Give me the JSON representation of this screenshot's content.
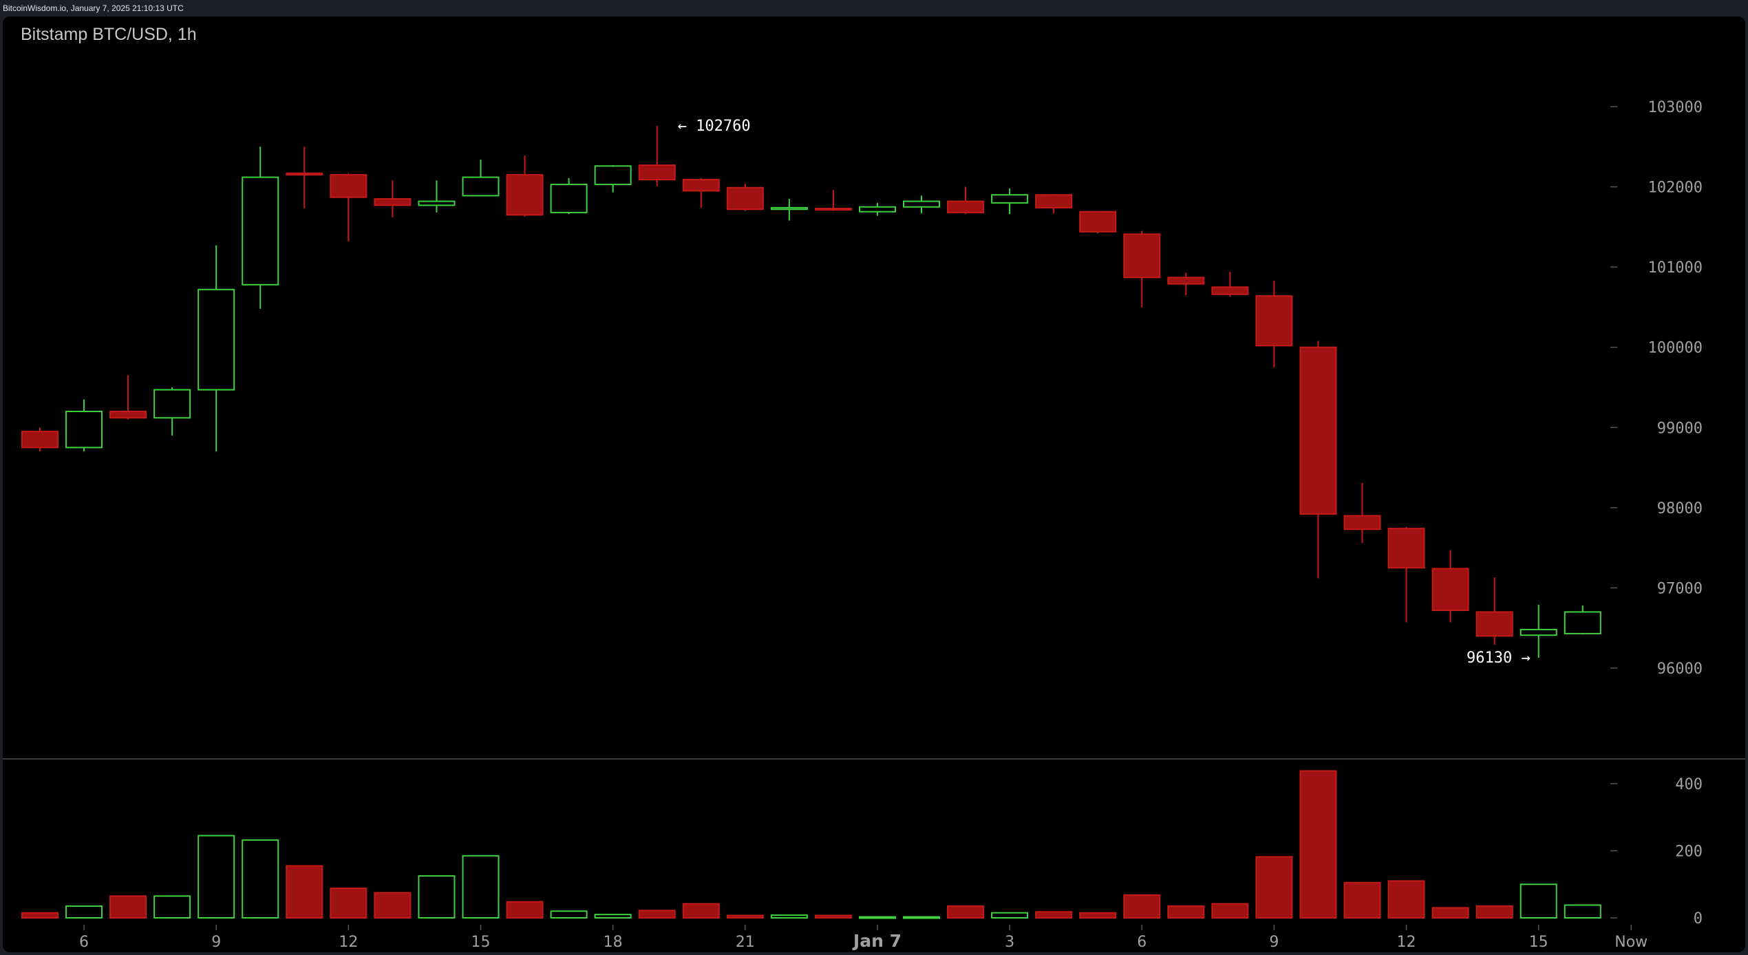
{
  "header": {
    "timestamp": "BitcoinWisdom.io, January 7, 2025 21:10:13 UTC",
    "title": "Bitstamp BTC/USD, 1h"
  },
  "colors": {
    "up": "#3fd13f",
    "down": "#a01212",
    "down_edge": "#c41a1a",
    "axis_text": "#a0a0a0",
    "background": "#000000"
  },
  "chart_data": [
    {
      "type": "candlestick",
      "title": "Bitstamp BTC/USD, 1h",
      "ylim": [
        95000,
        103800
      ],
      "y_ticks": [
        96000,
        97000,
        98000,
        99000,
        100000,
        101000,
        102000,
        103000
      ],
      "x_ticks": [
        {
          "label": "6",
          "index": 1
        },
        {
          "label": "9",
          "index": 4
        },
        {
          "label": "12",
          "index": 7
        },
        {
          "label": "15",
          "index": 10
        },
        {
          "label": "18",
          "index": 13
        },
        {
          "label": "21",
          "index": 16
        },
        {
          "label": "Jan 7",
          "index": 19,
          "bold": true
        },
        {
          "label": "3",
          "index": 22
        },
        {
          "label": "6",
          "index": 25
        },
        {
          "label": "9",
          "index": 28
        },
        {
          "label": "12",
          "index": 31
        },
        {
          "label": "15",
          "index": 34
        },
        {
          "label": "Now",
          "index": 36.1
        }
      ],
      "candles": [
        {
          "o": 98950,
          "h": 99000,
          "l": 98700,
          "c": 98750
        },
        {
          "o": 98750,
          "h": 99350,
          "l": 98700,
          "c": 99200
        },
        {
          "o": 99200,
          "h": 99650,
          "l": 99100,
          "c": 99120
        },
        {
          "o": 99120,
          "h": 99500,
          "l": 98900,
          "c": 99470
        },
        {
          "o": 99470,
          "h": 101270,
          "l": 98700,
          "c": 100720
        },
        {
          "o": 100780,
          "h": 102500,
          "l": 100480,
          "c": 102120
        },
        {
          "o": 102170,
          "h": 102500,
          "l": 101730,
          "c": 102150
        },
        {
          "o": 102150,
          "h": 102170,
          "l": 101320,
          "c": 101870
        },
        {
          "o": 101850,
          "h": 102080,
          "l": 101620,
          "c": 101770
        },
        {
          "o": 101770,
          "h": 102080,
          "l": 101680,
          "c": 101820
        },
        {
          "o": 101890,
          "h": 102340,
          "l": 101890,
          "c": 102120
        },
        {
          "o": 102150,
          "h": 102390,
          "l": 101630,
          "c": 101650
        },
        {
          "o": 101680,
          "h": 102110,
          "l": 101660,
          "c": 102030
        },
        {
          "o": 102030,
          "h": 102270,
          "l": 101930,
          "c": 102260
        },
        {
          "o": 102270,
          "h": 102760,
          "l": 102010,
          "c": 102090
        },
        {
          "o": 102090,
          "h": 102110,
          "l": 101740,
          "c": 101950
        },
        {
          "o": 101990,
          "h": 102040,
          "l": 101700,
          "c": 101720
        },
        {
          "o": 101720,
          "h": 101850,
          "l": 101580,
          "c": 101740
        },
        {
          "o": 101730,
          "h": 101960,
          "l": 101700,
          "c": 101720
        },
        {
          "o": 101690,
          "h": 101800,
          "l": 101640,
          "c": 101750
        },
        {
          "o": 101750,
          "h": 101890,
          "l": 101670,
          "c": 101820
        },
        {
          "o": 101820,
          "h": 102000,
          "l": 101660,
          "c": 101680
        },
        {
          "o": 101800,
          "h": 101980,
          "l": 101660,
          "c": 101900
        },
        {
          "o": 101900,
          "h": 101910,
          "l": 101670,
          "c": 101740
        },
        {
          "o": 101690,
          "h": 101700,
          "l": 101420,
          "c": 101440
        },
        {
          "o": 101410,
          "h": 101450,
          "l": 100500,
          "c": 100870
        },
        {
          "o": 100870,
          "h": 100930,
          "l": 100650,
          "c": 100790
        },
        {
          "o": 100750,
          "h": 100940,
          "l": 100630,
          "c": 100660
        },
        {
          "o": 100640,
          "h": 100830,
          "l": 99750,
          "c": 100020
        },
        {
          "o": 100000,
          "h": 100080,
          "l": 97120,
          "c": 97920
        },
        {
          "o": 97900,
          "h": 98310,
          "l": 97560,
          "c": 97730
        },
        {
          "o": 97740,
          "h": 97760,
          "l": 96570,
          "c": 97250
        },
        {
          "o": 97240,
          "h": 97470,
          "l": 96570,
          "c": 96720
        },
        {
          "o": 96700,
          "h": 97130,
          "l": 96290,
          "c": 96400
        },
        {
          "o": 96410,
          "h": 96790,
          "l": 96130,
          "c": 96480
        },
        {
          "o": 96430,
          "h": 96780,
          "l": 96420,
          "c": 96700
        }
      ],
      "annotations": [
        {
          "label": "← 102760",
          "index": 14,
          "value": 102760,
          "side": "right"
        },
        {
          "label": "96130 →",
          "index": 34,
          "value": 96130,
          "side": "left"
        }
      ]
    },
    {
      "type": "bar",
      "ylim": [
        0,
        450
      ],
      "y_ticks": [
        0,
        200,
        400
      ],
      "volume": [
        {
          "v": 15,
          "up": false
        },
        {
          "v": 35,
          "up": true
        },
        {
          "v": 65,
          "up": false
        },
        {
          "v": 65,
          "up": true
        },
        {
          "v": 245,
          "up": true
        },
        {
          "v": 232,
          "up": true
        },
        {
          "v": 155,
          "up": false
        },
        {
          "v": 88,
          "up": false
        },
        {
          "v": 75,
          "up": false
        },
        {
          "v": 125,
          "up": true
        },
        {
          "v": 185,
          "up": true
        },
        {
          "v": 48,
          "up": false
        },
        {
          "v": 20,
          "up": true
        },
        {
          "v": 10,
          "up": true
        },
        {
          "v": 22,
          "up": false
        },
        {
          "v": 42,
          "up": false
        },
        {
          "v": 7,
          "up": false
        },
        {
          "v": 8,
          "up": true
        },
        {
          "v": 7,
          "up": false
        },
        {
          "v": 3,
          "up": true
        },
        {
          "v": 3,
          "up": true
        },
        {
          "v": 35,
          "up": false
        },
        {
          "v": 15,
          "up": true
        },
        {
          "v": 18,
          "up": false
        },
        {
          "v": 15,
          "up": false
        },
        {
          "v": 68,
          "up": false
        },
        {
          "v": 35,
          "up": false
        },
        {
          "v": 42,
          "up": false
        },
        {
          "v": 182,
          "up": false
        },
        {
          "v": 438,
          "up": false
        },
        {
          "v": 105,
          "up": false
        },
        {
          "v": 110,
          "up": false
        },
        {
          "v": 30,
          "up": false
        },
        {
          "v": 35,
          "up": false
        },
        {
          "v": 100,
          "up": true
        },
        {
          "v": 38,
          "up": true
        }
      ]
    }
  ]
}
